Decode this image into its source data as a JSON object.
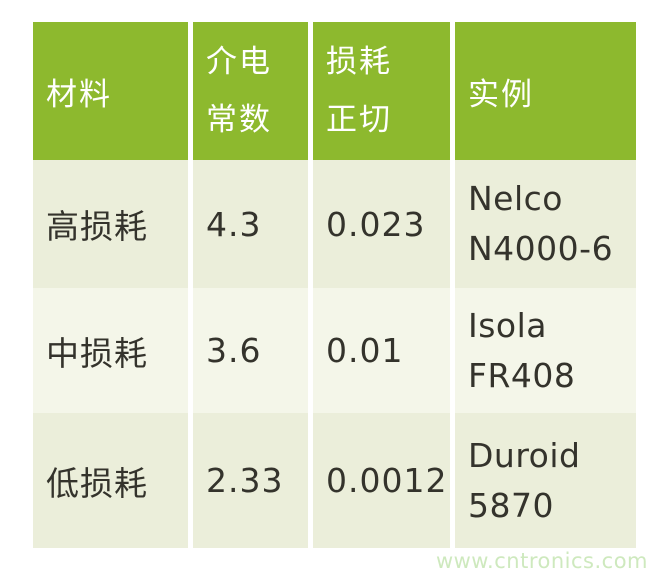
{
  "colors": {
    "header_bg": "#8db92e",
    "header_text": "#ffffff",
    "row_odd_bg": "#ebeeda",
    "row_even_bg": "#f4f6e9",
    "body_text": "#34332c",
    "watermark_text": "#cee9be",
    "page_bg": "#ffffff"
  },
  "chart_data": {
    "type": "table",
    "columns": [
      "材料",
      "介电常数",
      "损耗正切",
      "实例"
    ],
    "rows": [
      [
        "高损耗",
        "4.3",
        "0.023",
        "Nelco N4000-6"
      ],
      [
        "中损耗",
        "3.6",
        "0.01",
        "Isola FR408"
      ],
      [
        "低损耗",
        "2.33",
        "0.0012",
        "Duroid 5870"
      ]
    ],
    "title": "",
    "legend": "none",
    "grid": "off"
  },
  "table": {
    "header": {
      "material": "材料",
      "dielectric_lines": [
        "介电",
        "常数"
      ],
      "loss_lines": [
        "损耗",
        "正切"
      ],
      "example": "实例"
    },
    "rows": [
      {
        "material": "高损耗",
        "dielectric": "4.3",
        "loss": "0.023",
        "example_lines": [
          "Nelco",
          "N4000-6"
        ]
      },
      {
        "material": "中损耗",
        "dielectric": "3.6",
        "loss": "0.01",
        "example_lines": [
          "Isola",
          "FR408"
        ]
      },
      {
        "material": "低损耗",
        "dielectric": "2.33",
        "loss": "0.0012",
        "example_lines": [
          "Duroid",
          "5870"
        ]
      }
    ]
  },
  "watermark": "www.cntronics.com"
}
